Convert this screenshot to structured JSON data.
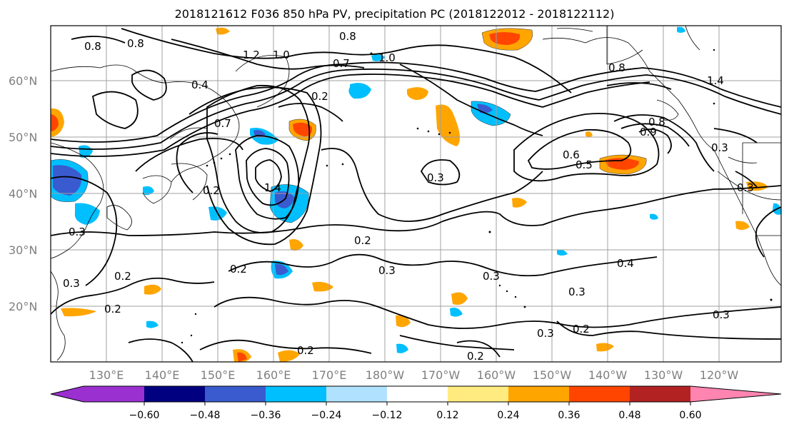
{
  "title": "2018121612 F036 850 hPa PV, precipitation PC (2018122012 - 2018122112)",
  "lat_labels": [
    "60°N",
    "50°N",
    "40°N",
    "30°N",
    "20°N"
  ],
  "lon_labels": [
    "130°E",
    "140°E",
    "150°E",
    "160°E",
    "170°E",
    "180°W",
    "170°W",
    "160°W",
    "150°W",
    "140°W",
    "130°W",
    "120°W"
  ],
  "colorbar": {
    "ticks": [
      "−0.60",
      "−0.48",
      "−0.36",
      "−0.24",
      "−0.12",
      "0.12",
      "0.24",
      "0.36",
      "0.48",
      "0.60"
    ],
    "colors": [
      "#9b30d0",
      "#000080",
      "#3a5bd0",
      "#00bfff",
      "#b0e2ff",
      "#ffffff",
      "#ffeb80",
      "#ffa500",
      "#ff4500",
      "#b22222",
      "#ff85b0"
    ]
  },
  "contour_labels": [
    "0.8",
    "0.8",
    "1.2",
    "1.0",
    "0.4",
    "0.7",
    "0.2",
    "0.8",
    "1.0",
    "0.7",
    "0.2",
    "1.4",
    "0.2",
    "0.3",
    "0.3",
    "0.2",
    "0.2",
    "0.3",
    "0.3",
    "0.2",
    "0.3",
    "0.2",
    "0.3",
    "0.4",
    "0.3",
    "0.2",
    "0.2",
    "0.3",
    "0.6",
    "0.5",
    "0.8",
    "0.9",
    "0.8",
    "1.4",
    "0.3",
    "0.3"
  ]
}
